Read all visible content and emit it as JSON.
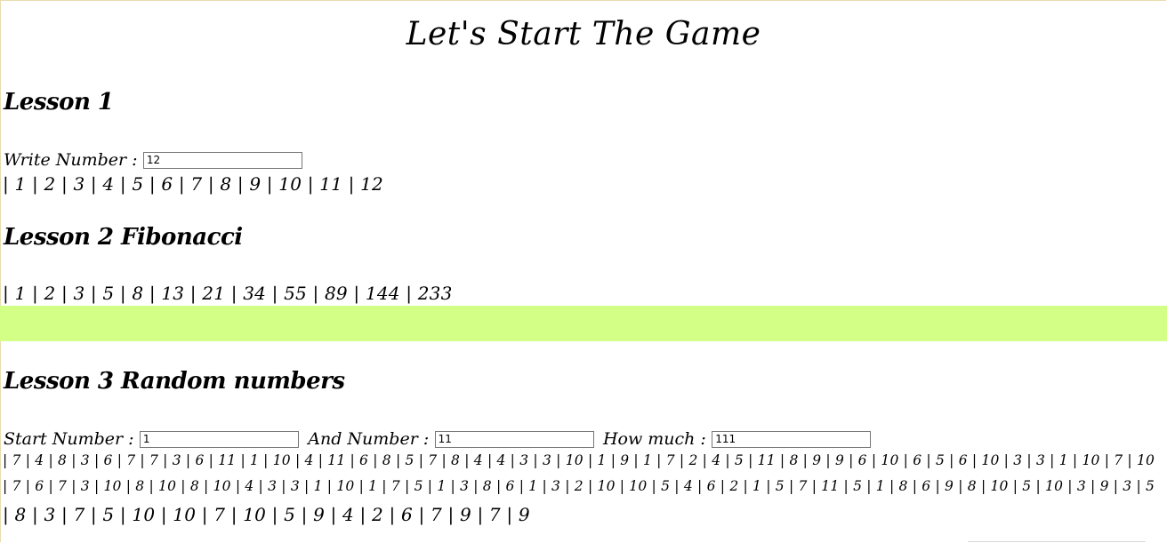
{
  "page": {
    "title": "Let's Start The Game",
    "band_color": "#d4ff86"
  },
  "lesson1": {
    "heading": "Lesson 1",
    "label": "Write Number :",
    "value": "12",
    "sequence": "| 1 | 2 | 3 | 4 | 5 | 6 | 7 | 8 | 9 | 10 | 11 | 12"
  },
  "lesson2": {
    "heading": "Lesson 2 Fibonacci",
    "sequence": "| 1 | 2 | 3 | 5 | 8 | 13 | 21 | 34 | 55 | 89 | 144 | 233"
  },
  "lesson3": {
    "heading": "Lesson 3 Random numbers",
    "start_label": "Start Number :",
    "start_value": "1",
    "end_label": "And Number :",
    "end_value": "11",
    "count_label": "How much :",
    "count_value": "111",
    "lines": [
      "| 7 | 4 | 8 | 3 | 6 | 7 | 7 | 3 | 6 | 11 | 1 | 10 | 4 | 11 | 6 | 8 | 5 | 7 | 8 | 4 | 4 | 3 | 3 | 10 | 1 | 9 | 1 | 7 | 2 | 4 | 5 | 11 | 8 | 9 | 9 | 6 | 10 | 6 | 5 | 6 | 10 | 3 | 3 | 1 | 10 | 7 | 10",
      "| 7 | 6 | 7 | 3 | 10 | 8 | 10 | 8 | 10 | 4 | 3 | 3 | 1 | 10 | 1 | 7 | 5 | 1 | 3 | 8 | 6 | 1 | 3 | 2 | 10 | 10 | 5 | 4 | 6 | 2 | 1 | 5 | 7 | 11 | 5 | 1 | 8 | 6 | 9 | 8 | 10 | 5 | 10 | 3 | 9 | 3 | 5",
      "| 8 | 3 | 7 | 5 | 10 | 10 | 7 | 10 | 5 | 9 | 4 | 2 | 6 | 7 | 9 | 7 | 9"
    ]
  }
}
